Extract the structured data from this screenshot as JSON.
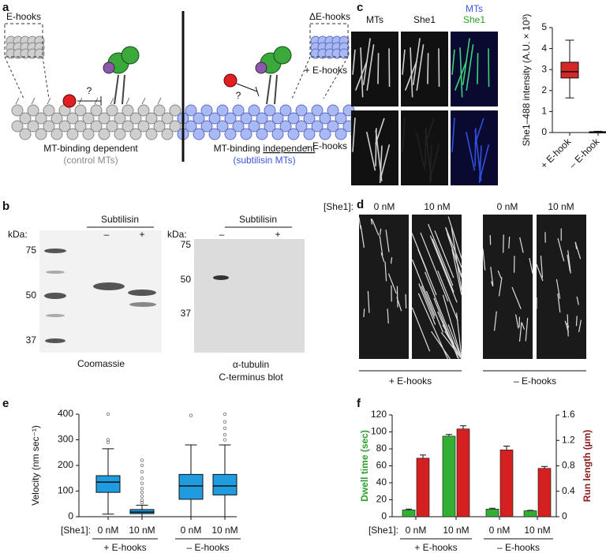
{
  "panel_letters": [
    "a",
    "b",
    "c",
    "d",
    "e",
    "f"
  ],
  "panel_a": {
    "left_inset": "E-hooks",
    "right_inset": "ΔE-hooks",
    "question_left": "?",
    "question_right": "?",
    "left_label": "MT-binding dependent",
    "left_sublabel": "(control MTs)",
    "right_label_start": "MT-binding ",
    "right_label_underlined": "independent",
    "right_sublabel": "(subtilisin MTs)"
  },
  "panel_b": {
    "gels": [
      {
        "header": "Subtilisin",
        "lanes": [
          "–",
          "+"
        ],
        "unit": "kDa:",
        "markers": [
          "75",
          "50",
          "37"
        ],
        "caption": [
          "Coomassie"
        ]
      },
      {
        "header": "Subtilisin",
        "lanes": [
          "–",
          "+"
        ],
        "unit": "kDa:",
        "markers": [
          "75",
          "50",
          "37"
        ],
        "caption": [
          "α-tubulin",
          "C-terminus blot"
        ]
      }
    ]
  },
  "panel_c": {
    "columns": [
      "MTs",
      "She1"
    ],
    "merge_top": "MTs",
    "merge_bottom": "She1",
    "rows": [
      "+ E-hooks",
      "– E-hooks"
    ]
  },
  "panel_d": {
    "prefix": "[She1]:",
    "columns": [
      "0 nM",
      "10 nM",
      "0 nM",
      "10 nM"
    ],
    "groups": [
      "+ E-hooks",
      "– E-hooks"
    ]
  },
  "chart_data": [
    {
      "type": "box",
      "ylabel": "She1–488 intensity (A.U. × 10³)",
      "categories": [
        "+ E-hook",
        "– E-hook"
      ],
      "color": "#d62728",
      "ylim": [
        0,
        5
      ],
      "yticks": [
        0,
        1,
        2,
        3,
        4,
        5
      ],
      "boxes": [
        {
          "whisker_low": 1.65,
          "q1": 2.6,
          "median": 2.9,
          "q3": 3.35,
          "whisker_high": 4.4,
          "outliers": []
        },
        {
          "whisker_low": 0,
          "q1": 0,
          "median": 0.02,
          "q3": 0.04,
          "whisker_high": 0.06,
          "outliers": []
        }
      ]
    },
    {
      "type": "box",
      "ylabel": "Velocity (nm sec⁻¹)",
      "prefix": "[She1]:",
      "categories": [
        "0 nM",
        "10 nM",
        "0 nM",
        "10 nM"
      ],
      "groups": [
        "+ E-hooks",
        "– E-hooks"
      ],
      "color": "#1f9be0",
      "ylim": [
        0,
        400
      ],
      "yticks": [
        0,
        100,
        200,
        300,
        400
      ],
      "boxes": [
        {
          "whisker_low": 10,
          "q1": 95,
          "median": 135,
          "q3": 160,
          "whisker_high": 265,
          "outliers": [
            290,
            300,
            400
          ]
        },
        {
          "whisker_low": 0,
          "q1": 12,
          "median": 18,
          "q3": 28,
          "whisker_high": 45,
          "outliers": [
            55,
            65,
            80,
            95,
            110,
            130,
            150,
            175,
            200,
            220
          ]
        },
        {
          "whisker_low": 0,
          "q1": 68,
          "median": 120,
          "q3": 165,
          "whisker_high": 280,
          "outliers": [
            395
          ]
        },
        {
          "whisker_low": 0,
          "q1": 85,
          "median": 120,
          "q3": 165,
          "whisker_high": 280,
          "outliers": [
            300,
            320,
            345,
            370,
            400
          ]
        }
      ]
    },
    {
      "type": "bar",
      "ylabel": "Dwell time (sec)",
      "y2label": "Run length (µm)",
      "ylabel_color": "#2ca02c",
      "y2label_color": "#8b1a1a",
      "prefix": "[She1]:",
      "categories": [
        "0 nM",
        "10 nM",
        "0 nM",
        "10 nM"
      ],
      "groups": [
        "+ E-hooks",
        "– E-hooks"
      ],
      "ylim": [
        0,
        120
      ],
      "yticks": [
        0,
        20,
        40,
        60,
        80,
        100,
        120
      ],
      "y2lim": [
        0,
        1.6
      ],
      "y2ticks": [
        0,
        0.4,
        0.8,
        1.2,
        1.6
      ],
      "series": [
        {
          "color": "#33b033",
          "values": [
            8,
            95,
            9,
            7
          ],
          "errors": [
            1,
            2,
            1,
            0.5
          ]
        },
        {
          "color": "#d42020",
          "values": [
            0.92,
            1.38,
            1.05,
            0.76
          ],
          "errors": [
            0.05,
            0.05,
            0.06,
            0.03
          ],
          "axis": "y2"
        }
      ]
    }
  ]
}
